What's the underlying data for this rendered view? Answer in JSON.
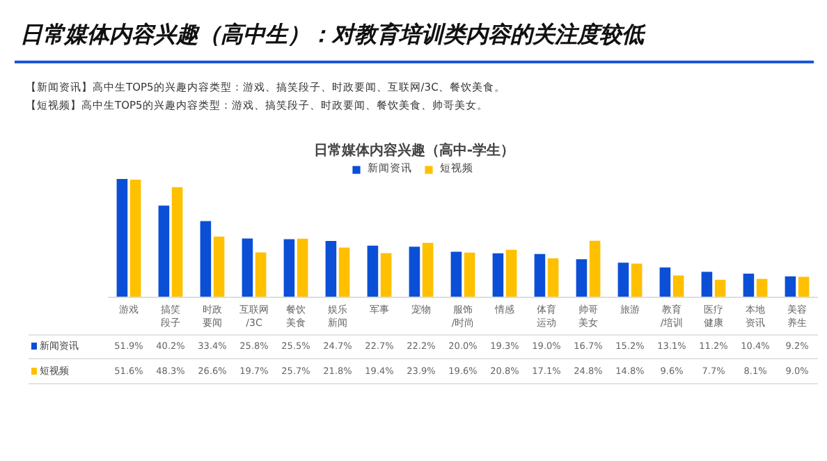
{
  "chart_data": {
    "type": "bar",
    "title": "日常媒体内容兴趣（高中生）：对教育培训类内容的关注度较低",
    "subtitle": "日常媒体内容兴趣（高中-学生）",
    "annotations": [
      "【新闻资讯】高中生TOP5的兴趣内容类型：游戏、搞笑段子、时政要闻、互联网/3C、餐饮美食。",
      "【短视频】高中生TOP5的兴趣内容类型：游戏、搞笑段子、时政要闻、餐饮美食、帅哥美女。"
    ],
    "categories": [
      "游戏",
      "搞笑段子",
      "时政要闻",
      "互联网/3C",
      "餐饮美食",
      "娱乐新闻",
      "军事",
      "宠物",
      "服饰/时尚",
      "情感",
      "体育运动",
      "帅哥美女",
      "旅游",
      "教育/培训",
      "医疗健康",
      "本地资讯",
      "美容养生"
    ],
    "series": [
      {
        "name": "新闻资讯",
        "color": "#0a4fd6",
        "values": [
          51.9,
          40.2,
          33.4,
          25.8,
          25.5,
          24.7,
          22.7,
          22.2,
          20.0,
          19.3,
          19.0,
          16.7,
          15.2,
          13.1,
          11.2,
          10.4,
          9.2
        ],
        "value_labels": [
          "51.9%",
          "40.2%",
          "33.4%",
          "25.8%",
          "25.5%",
          "24.7%",
          "22.7%",
          "22.2%",
          "20.0%",
          "19.3%",
          "19.0%",
          "16.7%",
          "15.2%",
          "13.1%",
          "11.2%",
          "10.4%",
          "9.2%"
        ]
      },
      {
        "name": "短视频",
        "color": "#ffc000",
        "values": [
          51.6,
          48.3,
          26.6,
          19.7,
          25.7,
          21.8,
          19.4,
          23.9,
          19.6,
          20.8,
          17.1,
          24.8,
          14.8,
          9.6,
          7.7,
          8.1,
          9.0
        ],
        "value_labels": [
          "51.6%",
          "48.3%",
          "26.6%",
          "19.7%",
          "25.7%",
          "21.8%",
          "19.4%",
          "23.9%",
          "19.6%",
          "20.8%",
          "17.1%",
          "24.8%",
          "14.8%",
          "9.6%",
          "7.7%",
          "8.1%",
          "9.0%"
        ]
      }
    ],
    "legend": "top",
    "tick_labels": false
  }
}
